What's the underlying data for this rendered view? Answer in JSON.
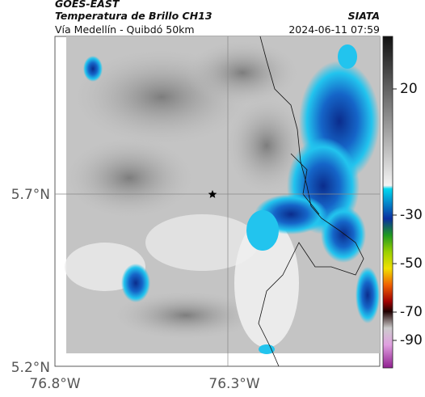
{
  "header": {
    "source": "GOES-EAST",
    "title": "Temperatura de Brillo CH13",
    "agency": "SIATA",
    "subtitle": "Vía Medellín - Quibdó 50km",
    "timestamp": "2024-06-11 07:59"
  },
  "map": {
    "lat_labels": [
      "5.7°N",
      "5.2°N"
    ],
    "lon_labels": [
      "76.8°W",
      "76.3°W"
    ]
  },
  "colorbar": {
    "ticks": [
      20,
      -30,
      -50,
      -70,
      -90
    ]
  }
}
